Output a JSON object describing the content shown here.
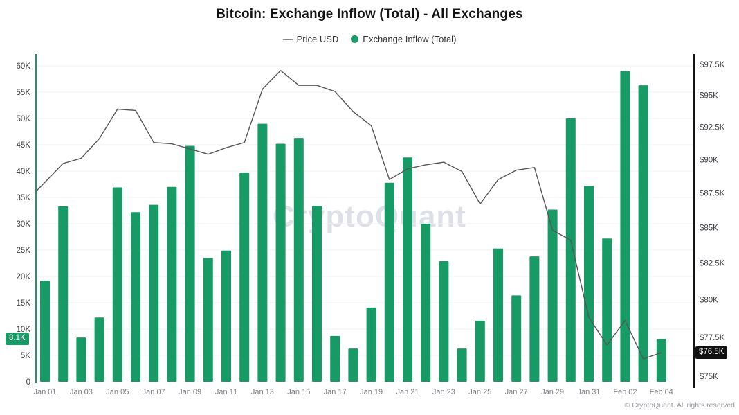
{
  "header": {
    "title": "Bitcoin: Exchange Inflow (Total) - All Exchanges"
  },
  "legend": {
    "items": [
      {
        "label": "Price USD",
        "marker": "line",
        "color": "#8a8a90"
      },
      {
        "label": "Exchange Inflow (Total)",
        "marker": "dot",
        "color": "#189a66"
      }
    ]
  },
  "watermark": "CryptoQuant",
  "footer": {
    "copyright": "© CryptoQuant. All rights reserved"
  },
  "colors": {
    "bar_green": "#189a66",
    "price_line": "#55555a",
    "left_spine": "#189a66",
    "right_spine": "#141414",
    "gridline": "#f1f1f4",
    "axis_text": "#3f3f46",
    "x_text": "#7d7d85"
  },
  "chart_data": {
    "type": "bar+line",
    "title": "Bitcoin: Exchange Inflow (Total) - All Exchanges",
    "categories": [
      "Jan 01",
      "Jan 02",
      "Jan 03",
      "Jan 04",
      "Jan 05",
      "Jan 06",
      "Jan 07",
      "Jan 08",
      "Jan 09",
      "Jan 10",
      "Jan 11",
      "Jan 12",
      "Jan 13",
      "Jan 14",
      "Jan 15",
      "Jan 16",
      "Jan 17",
      "Jan 18",
      "Jan 19",
      "Jan 20",
      "Jan 21",
      "Jan 22",
      "Jan 23",
      "Jan 24",
      "Jan 25",
      "Jan 26",
      "Jan 27",
      "Jan 28",
      "Jan 29",
      "Jan 30",
      "Jan 31",
      "Feb 01",
      "Feb 02",
      "Feb 03",
      "Feb 04"
    ],
    "x_tick_interval": 2,
    "grid": "horizontal",
    "legend_position": "top",
    "series": [
      {
        "name": "Exchange Inflow (Total)",
        "type": "bar",
        "axis": "left",
        "color": "#189a66",
        "values": [
          19200,
          33300,
          8400,
          12200,
          36900,
          32200,
          33600,
          37000,
          44800,
          23500,
          24900,
          39700,
          49000,
          45200,
          46300,
          33400,
          8700,
          6300,
          14100,
          37800,
          42600,
          30000,
          22900,
          6300,
          11600,
          25300,
          16400,
          23800,
          32700,
          50000,
          37200,
          27200,
          59000,
          56300,
          8100
        ]
      },
      {
        "name": "Price USD",
        "type": "line",
        "axis": "right",
        "color": "#55555a",
        "values": [
          88300,
          89700,
          90100,
          91600,
          93900,
          93800,
          91300,
          91200,
          90800,
          90400,
          90900,
          91300,
          95500,
          97000,
          95800,
          95800,
          95300,
          93700,
          92600,
          88500,
          89300,
          89600,
          89800,
          89100,
          86700,
          88500,
          89200,
          89400,
          84800,
          84100,
          78800,
          77000,
          78600,
          76100,
          76500
        ]
      }
    ],
    "left_axis": {
      "scale": "linear",
      "min": 0,
      "max": 60000,
      "ticks": [
        {
          "label": "0",
          "value": 0
        },
        {
          "label": "5K",
          "value": 5000
        },
        {
          "label": "10K",
          "value": 10000
        },
        {
          "label": "15K",
          "value": 15000
        },
        {
          "label": "20K",
          "value": 20000
        },
        {
          "label": "25K",
          "value": 25000
        },
        {
          "label": "30K",
          "value": 30000
        },
        {
          "label": "35K",
          "value": 35000
        },
        {
          "label": "40K",
          "value": 40000
        },
        {
          "label": "45K",
          "value": 45000
        },
        {
          "label": "50K",
          "value": 50000
        },
        {
          "label": "55K",
          "value": 55000
        },
        {
          "label": "60K",
          "value": 60000
        }
      ]
    },
    "right_axis": {
      "scale": "log",
      "min": 75000,
      "max": 97500,
      "ticks": [
        {
          "label": "$75K",
          "value": 75000
        },
        {
          "label": "$77.5K",
          "value": 77500
        },
        {
          "label": "$80K",
          "value": 80000
        },
        {
          "label": "$82.5K",
          "value": 82500
        },
        {
          "label": "$85K",
          "value": 85000
        },
        {
          "label": "$87.5K",
          "value": 87500
        },
        {
          "label": "$90K",
          "value": 90000
        },
        {
          "label": "$92.5K",
          "value": 92500
        },
        {
          "label": "$95K",
          "value": 95000
        },
        {
          "label": "$97.5K",
          "value": 97500
        }
      ]
    },
    "current_values": {
      "inflow_label": "8.1K",
      "inflow_value": 8100,
      "price_label": "$76.5K",
      "price_value": 76500
    }
  }
}
